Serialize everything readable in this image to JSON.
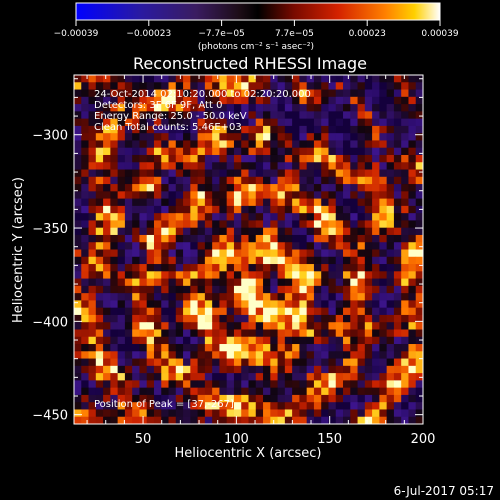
{
  "chart_data": {
    "type": "heatmap",
    "title": "Reconstructed RHESSI Image",
    "xlabel": "Heliocentric X (arcsec)",
    "ylabel": "Heliocentric Y (arcsec)",
    "xlim": [
      13,
      200
    ],
    "ylim": [
      -455,
      -268
    ],
    "x_ticks": [
      50,
      100,
      150,
      200
    ],
    "y_ticks": [
      -300,
      -350,
      -400,
      -450
    ],
    "x_tick_labels": [
      "50",
      "100",
      "150",
      "200"
    ],
    "y_tick_labels": [
      "−300",
      "−350",
      "−400",
      "−450"
    ],
    "colorbar": {
      "range": [
        -0.00039,
        0.00039
      ],
      "tick_labels": [
        "−0.00039",
        "−0.00023",
        "−7.7e−05",
        "7.7e−05",
        "0.00023",
        "0.00039"
      ],
      "unit_label": "(photons cm⁻² s⁻¹ asec⁻²)"
    },
    "grid": false,
    "annotations": {
      "time_range": "24-Oct-2014 02:10:20.000 to 02:20:20.000",
      "detectors": "Detectors: 3F 6F 9F, Att 0",
      "energy": "Energy Range: 25.0 - 50.0 keV",
      "clean": "Clean     Total counts: 5.46E+03",
      "peak": "Position of Peak = [37,-267]"
    },
    "peak_position": [
      37,
      -267
    ],
    "date_stamp": "6-Jul-2017 05:17"
  }
}
